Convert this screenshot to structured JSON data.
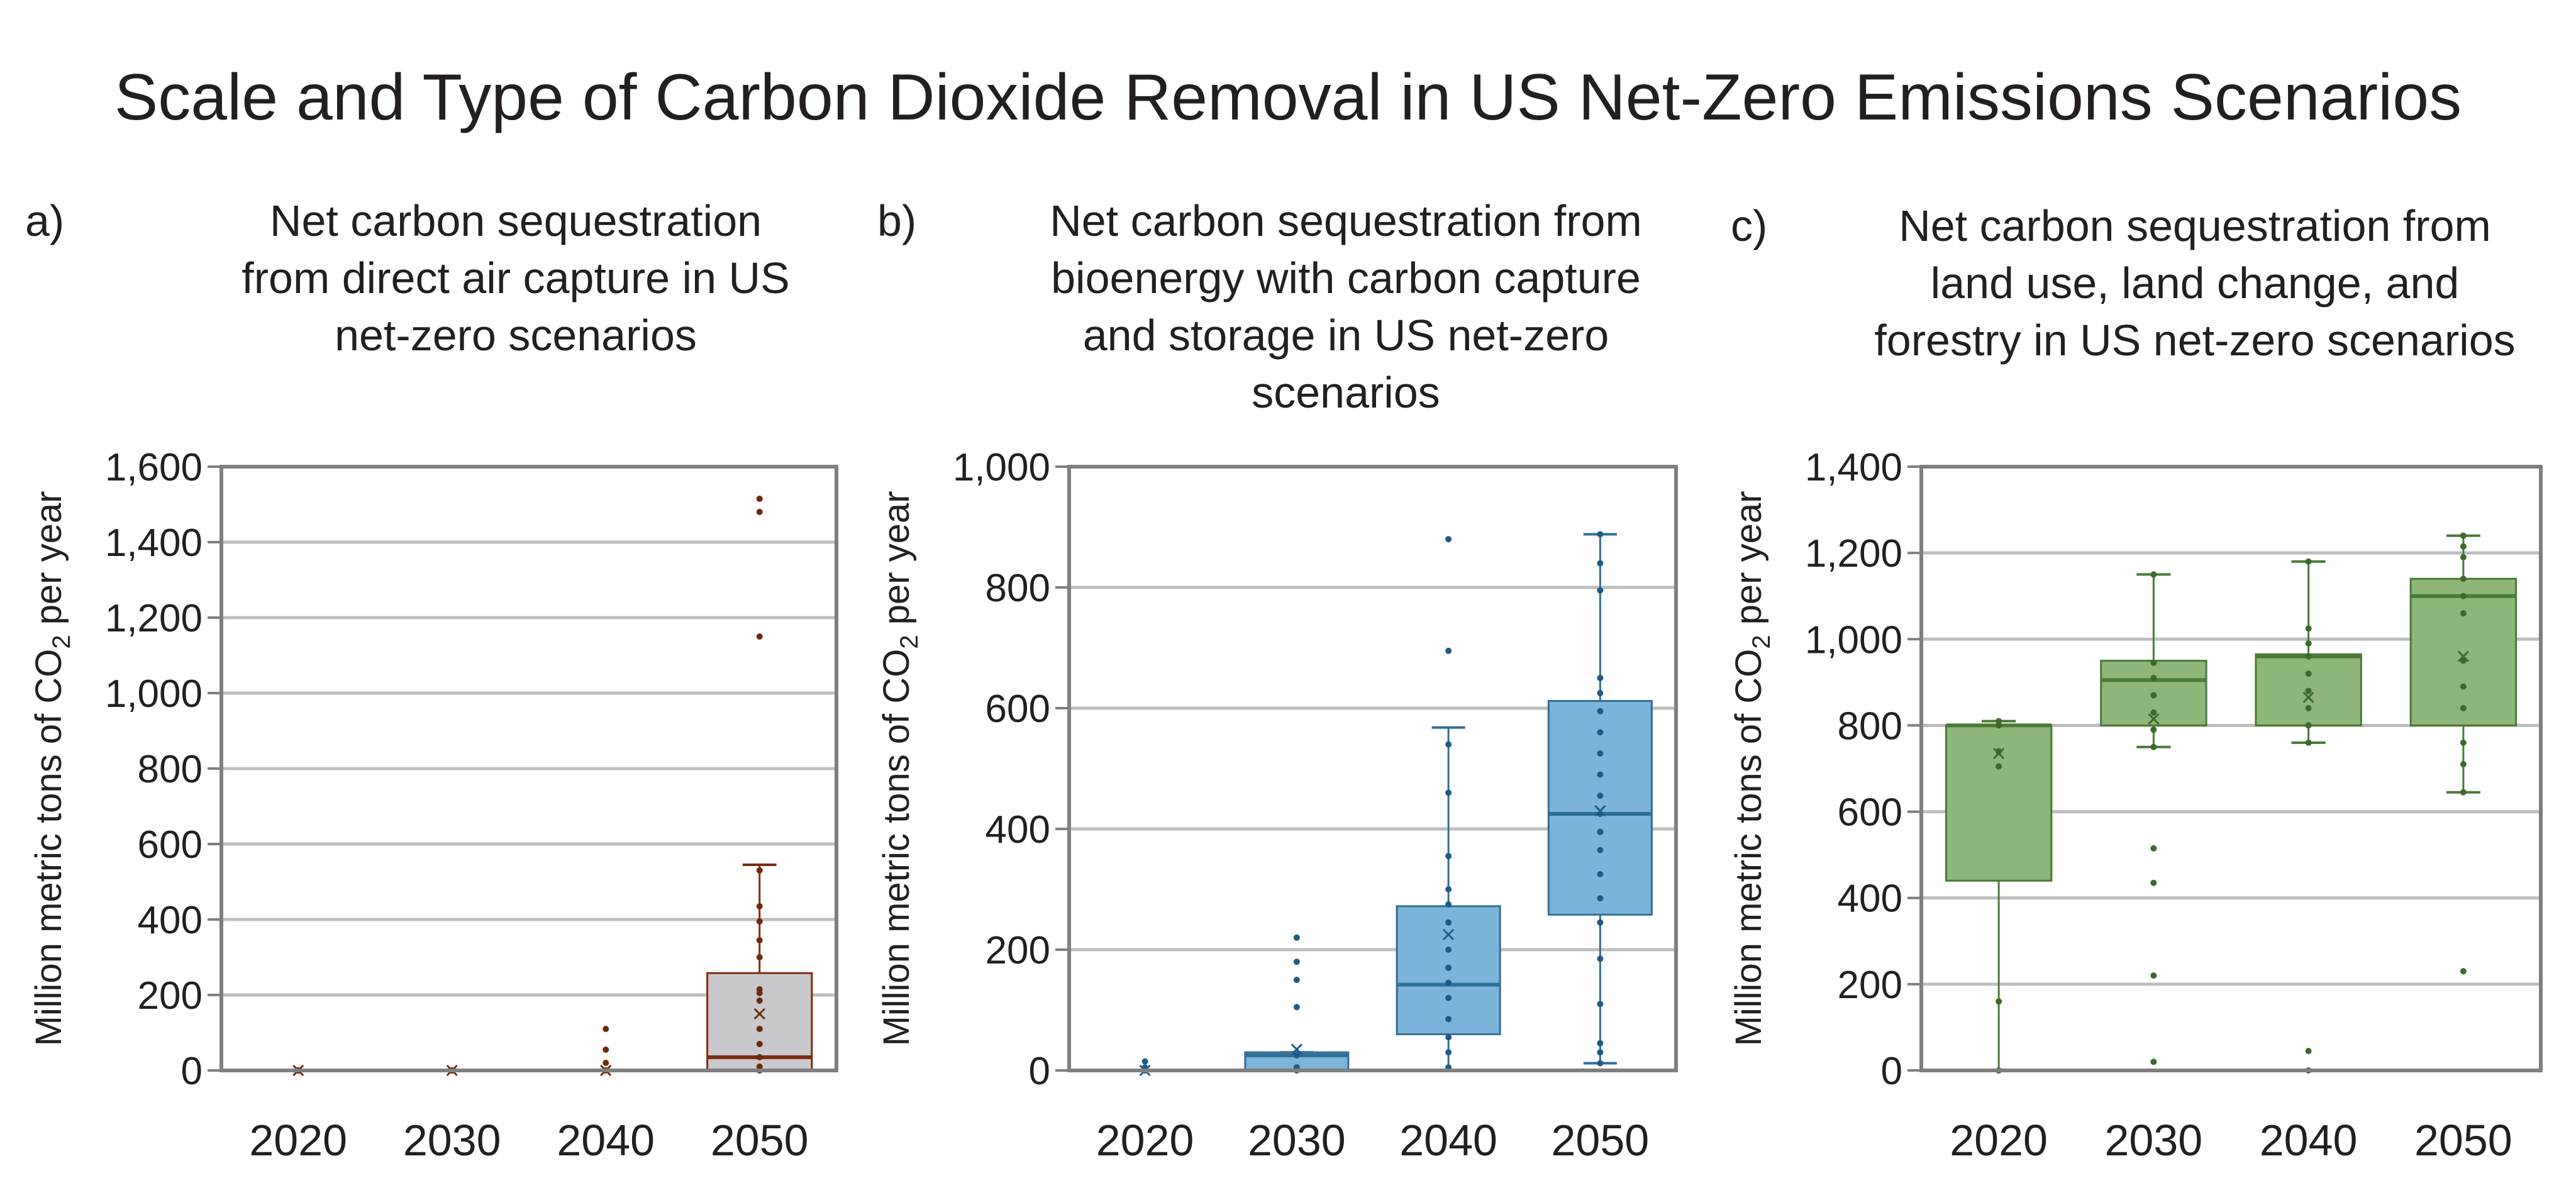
{
  "title": "Scale and Type of Carbon Dioxide Removal in US Net-Zero Emissions Scenarios",
  "chart_data": [
    {
      "type": "box",
      "panel_letter": "a)",
      "title_lines": [
        "Net carbon sequestration",
        "from direct air capture in US",
        "net-zero scenarios"
      ],
      "ylabel": "Million metric tons of CO2 per year",
      "ylabel_parts": [
        "Million metric tons of CO",
        "2",
        " per year"
      ],
      "ylim": [
        0,
        1600
      ],
      "yticks": [
        0,
        200,
        400,
        600,
        800,
        1000,
        1200,
        1400,
        1600
      ],
      "ytick_labels": [
        "0",
        "200",
        "400",
        "600",
        "800",
        "1,000",
        "1,200",
        "1,400",
        "1,600"
      ],
      "categories": [
        "2020",
        "2030",
        "2040",
        "2050"
      ],
      "grid": true,
      "color_fill": "#c9c8cc",
      "color_line": "#7b2e0e",
      "color_point": "#6b2a0c",
      "boxes": [
        {
          "q1": 0,
          "median": 0,
          "q3": 0,
          "whisker_low": 0,
          "whisker_high": 0,
          "mean": 0,
          "points": [
            0,
            0,
            0,
            0,
            0
          ]
        },
        {
          "q1": 0,
          "median": 0,
          "q3": 0,
          "whisker_low": 0,
          "whisker_high": 0,
          "mean": 0,
          "points": [
            0,
            0,
            0,
            0,
            0
          ]
        },
        {
          "q1": 0,
          "median": 0,
          "q3": 0,
          "whisker_low": 0,
          "whisker_high": 0,
          "mean": 0,
          "points": [
            0,
            0,
            20,
            55,
            110
          ]
        },
        {
          "q1": 0,
          "median": 35,
          "q3": 258,
          "whisker_low": 0,
          "whisker_high": 545,
          "mean": 150,
          "points": [
            0,
            10,
            35,
            70,
            110,
            185,
            205,
            215,
            300,
            345,
            395,
            435,
            530,
            1150,
            1480,
            1515
          ]
        }
      ]
    },
    {
      "type": "box",
      "panel_letter": "b)",
      "title_lines": [
        "Net carbon sequestration from",
        "bioenergy with carbon capture",
        "and storage in US net-zero",
        "scenarios"
      ],
      "ylabel": "Million metric tons of CO2 per year",
      "ylabel_parts": [
        "Million metric tons of CO",
        "2",
        " per year"
      ],
      "ylim": [
        0,
        1000
      ],
      "yticks": [
        0,
        200,
        400,
        600,
        800,
        1000
      ],
      "ytick_labels": [
        "0",
        "200",
        "400",
        "600",
        "800",
        "1,000"
      ],
      "categories": [
        "2020",
        "2030",
        "2040",
        "2050"
      ],
      "grid": true,
      "color_fill": "#7bb4d8",
      "color_line": "#2e6f98",
      "color_point": "#1f5a86",
      "boxes": [
        {
          "q1": 0,
          "median": 0,
          "q3": 0,
          "whisker_low": 0,
          "whisker_high": 0,
          "mean": 0,
          "points": [
            0,
            5,
            15
          ]
        },
        {
          "q1": 0,
          "median": 25,
          "q3": 30,
          "whisker_low": 0,
          "whisker_high": 30,
          "mean": 35,
          "points": [
            0,
            5,
            25,
            105,
            150,
            180,
            220
          ]
        },
        {
          "q1": 60,
          "median": 142,
          "q3": 272,
          "whisker_low": 0,
          "whisker_high": 568,
          "mean": 225,
          "points": [
            5,
            30,
            55,
            85,
            120,
            145,
            170,
            200,
            245,
            275,
            300,
            355,
            460,
            540,
            695,
            880
          ]
        },
        {
          "q1": 258,
          "median": 425,
          "q3": 612,
          "whisker_low": 12,
          "whisker_high": 888,
          "mean": 430,
          "points": [
            12,
            30,
            45,
            110,
            185,
            245,
            285,
            325,
            365,
            395,
            425,
            455,
            490,
            525,
            560,
            595,
            625,
            650,
            795,
            840,
            888
          ]
        }
      ]
    },
    {
      "type": "box",
      "panel_letter": "c)",
      "title_lines": [
        "Net carbon sequestration from",
        "land use, land change, and",
        "forestry in US net-zero scenarios"
      ],
      "ylabel": "Million metric tons of CO2 per year",
      "ylabel_parts": [
        "Million metric tons of CO",
        "2",
        " per year"
      ],
      "ylim": [
        0,
        1400
      ],
      "yticks": [
        0,
        200,
        400,
        600,
        800,
        1000,
        1200,
        1400
      ],
      "ytick_labels": [
        "0",
        "200",
        "400",
        "600",
        "800",
        "1,000",
        "1,200",
        "1,400"
      ],
      "categories": [
        "2020",
        "2030",
        "2040",
        "2050"
      ],
      "grid": true,
      "color_fill": "#8db678",
      "color_line": "#4a7a36",
      "color_point": "#3b6a2a",
      "boxes": [
        {
          "q1": 440,
          "median": 800,
          "q3": 800,
          "whisker_low": 0,
          "whisker_high": 810,
          "mean": 735,
          "points": [
            0,
            160,
            705,
            740,
            800,
            810
          ]
        },
        {
          "q1": 800,
          "median": 905,
          "q3": 950,
          "whisker_low": 750,
          "whisker_high": 1150,
          "mean": 815,
          "points": [
            20,
            220,
            435,
            515,
            750,
            790,
            830,
            870,
            910,
            945,
            1150
          ]
        },
        {
          "q1": 800,
          "median": 960,
          "q3": 965,
          "whisker_low": 760,
          "whisker_high": 1180,
          "mean": 865,
          "points": [
            0,
            45,
            760,
            800,
            840,
            880,
            920,
            960,
            990,
            1025,
            1180
          ]
        },
        {
          "q1": 800,
          "median": 1100,
          "q3": 1140,
          "whisker_low": 645,
          "whisker_high": 1240,
          "mean": 960,
          "points": [
            230,
            645,
            710,
            760,
            840,
            890,
            950,
            1060,
            1100,
            1140,
            1190,
            1215,
            1240
          ]
        }
      ]
    }
  ]
}
